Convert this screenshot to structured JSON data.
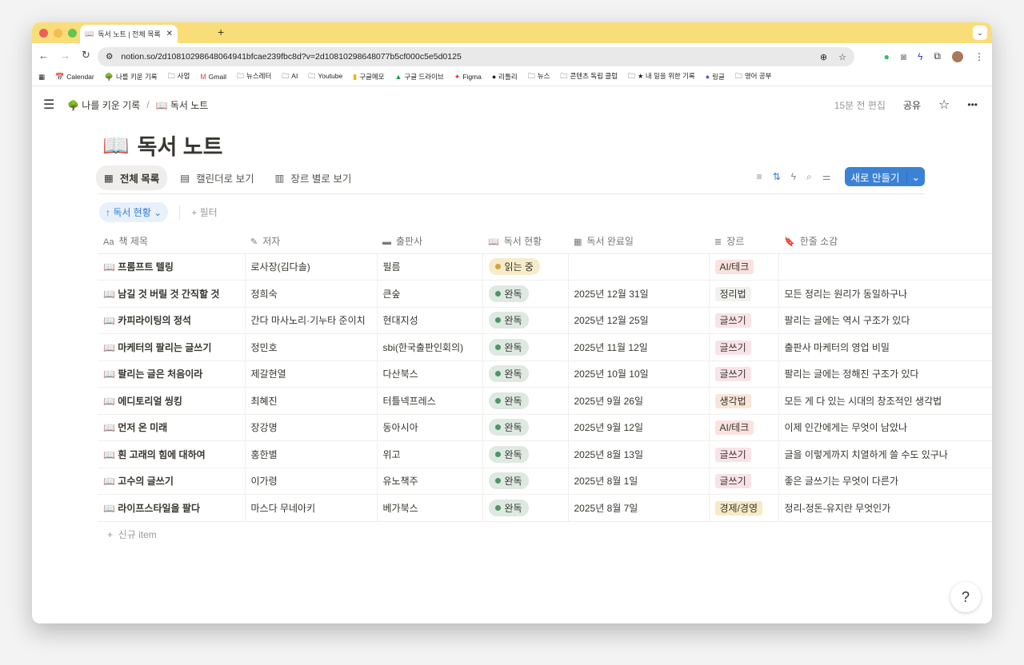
{
  "browser": {
    "tab_title": "독서 노트 | 전체 목록",
    "url": "notion.so/2d10810298648064941bfcae239fbc8d?v=2d10810298648077b5cf000c5e5d0125",
    "bookmarks": [
      "Calendar",
      "나를 키운 기록",
      "사업",
      "Gmail",
      "뉴스레터",
      "AI",
      "Youtube",
      "구글메모",
      "구글 드라이브",
      "Figma",
      "리틀리",
      "뉴스",
      "콘텐츠 독립 클럽",
      "★ 내 일을 위한 기록",
      "링글",
      "영어 공부"
    ],
    "colors": {
      "tabbar": "#f9dd78"
    }
  },
  "header": {
    "breadcrumb": [
      "나를 키운 기록",
      "독서 노트"
    ],
    "edited": "15분 전 편집",
    "share": "공유"
  },
  "page": {
    "title": "독서 노트"
  },
  "views": [
    "전체 목록",
    "캘린더로 보기",
    "장르 별로 보기"
  ],
  "toolbar": {
    "new_button": "새로 만들기",
    "accent": "#3b82d6"
  },
  "filters": {
    "sort_chip": "독서 현황",
    "add_filter": "필터"
  },
  "table": {
    "columns": [
      "책 제목",
      "저자",
      "출판사",
      "독서 현황",
      "독서 완료일",
      "장르",
      "한줄 소감"
    ],
    "rows": [
      [
        "프롬프트 텔링",
        "로사장(김다솔)",
        "필름",
        "읽는 중",
        "",
        "AI/테크",
        ""
      ],
      [
        "남길 것 버릴 것 간직할 것",
        "정희숙",
        "큰숲",
        "완독",
        "2025년 12월 31일",
        "정리법",
        "모든 정리는 원리가 동일하구나"
      ],
      [
        "카피라이팅의 정석",
        "간다 마사노리·기누타 준이치",
        "현대지성",
        "완독",
        "2025년 12월 25일",
        "글쓰기",
        "팔리는 글에는 역시 구조가 있다"
      ],
      [
        "마케터의 팔리는 글쓰기",
        "정민호",
        "sbi(한국출판인회의)",
        "완독",
        "2025년 11월 12일",
        "글쓰기",
        "출판사 마케터의 영업 비밀"
      ],
      [
        "팔리는 글은 처음이라",
        "제갈현열",
        "다산북스",
        "완독",
        "2025년 10월 10일",
        "글쓰기",
        "팔리는 글에는 정해진 구조가 있다"
      ],
      [
        "에디토리얼 씽킹",
        "최혜진",
        "터틀넥프레스",
        "완독",
        "2025년 9월 26일",
        "생각법",
        "모든 게 다 있는 시대의 창조적인 생각법"
      ],
      [
        "먼저 온 미래",
        "장강명",
        "동아시아",
        "완독",
        "2025년 9월 12일",
        "AI/테크",
        "이제 인간에게는 무엇이 남았나"
      ],
      [
        "흰 고래의 힘에 대하여",
        "홍한별",
        "위고",
        "완독",
        "2025년 8월 13일",
        "글쓰기",
        "글을 이렇게까지 치열하게 쓸 수도 있구나"
      ],
      [
        "고수의 글쓰기",
        "이가령",
        "유노책주",
        "완독",
        "2025년 8월 1일",
        "글쓰기",
        "좋은 글쓰기는 무엇이 다른가"
      ],
      [
        "라이프스타일을 팔다",
        "마스다 무네아키",
        "베가북스",
        "완독",
        "2025년 8월 7일",
        "경제/경영",
        "정리-정돈-유지란 무엇인가"
      ]
    ],
    "new_row": "신규 item",
    "status_colors": {
      "읽는 중": {
        "bg": "#f6ecc9",
        "dot": "#d4a43c"
      },
      "완독": {
        "bg": "#dde9e1",
        "dot": "#4f9468"
      }
    },
    "genre_colors": {
      "AI/테크": "#fbe2df",
      "정리법": "#f1f1ef",
      "글쓰기": "#f9e2e8",
      "생각법": "#f8e6d8",
      "경제/경영": "#f7ebc6"
    }
  }
}
